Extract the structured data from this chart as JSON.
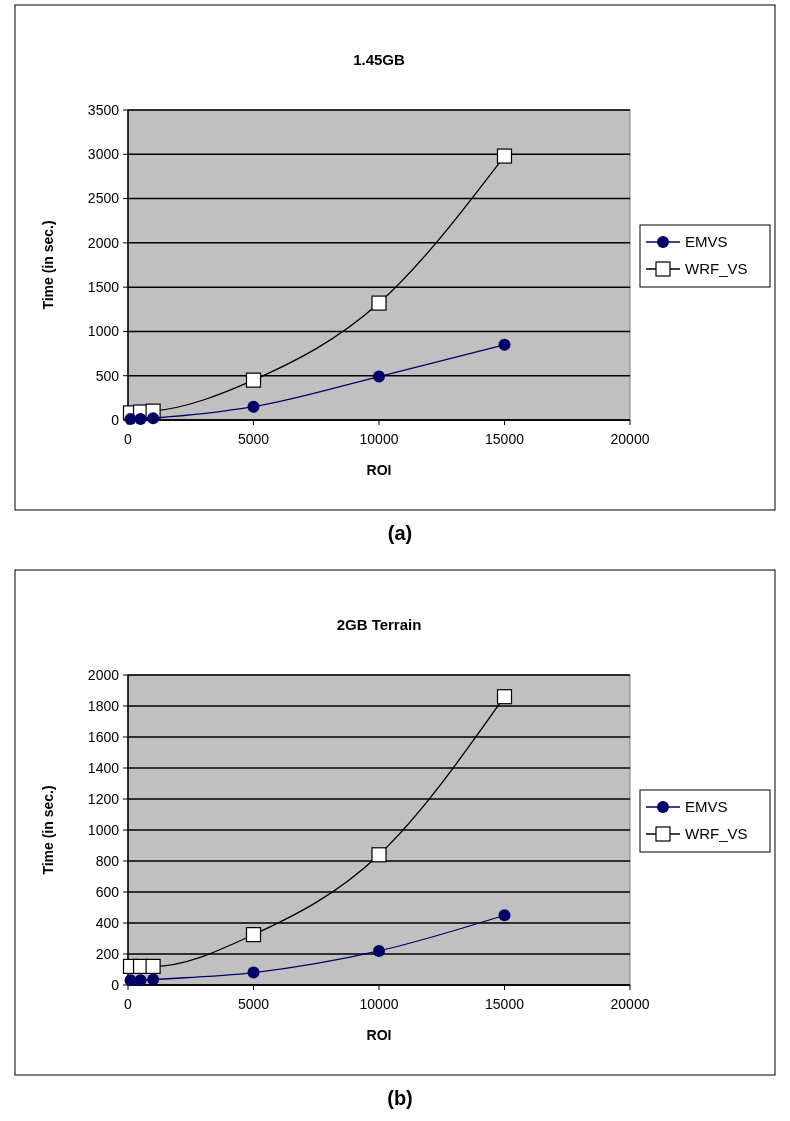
{
  "chart_data": [
    {
      "type": "line",
      "title": "1.45GB",
      "xlabel": "ROI",
      "ylabel": "Time (in sec.)",
      "x": [
        100,
        500,
        1000,
        5000,
        10000,
        15000
      ],
      "xlim": [
        0,
        20000
      ],
      "xticks": [
        0,
        5000,
        10000,
        15000,
        20000
      ],
      "ylim": [
        0,
        3500
      ],
      "yticks": [
        0,
        500,
        1000,
        1500,
        2000,
        2500,
        3000,
        3500
      ],
      "grid": "y",
      "legend": "right",
      "annotations": [
        "(a)"
      ],
      "series": [
        {
          "name": "EMVS",
          "color": "#000066",
          "values": [
            10,
            10,
            20,
            150,
            490,
            850
          ],
          "marker": "circle"
        },
        {
          "name": "WRF_VS",
          "color": "#000000",
          "values": [
            80,
            90,
            100,
            450,
            1320,
            2980
          ],
          "marker": "square"
        }
      ]
    },
    {
      "type": "line",
      "title": "2GB Terrain",
      "xlabel": "ROI",
      "ylabel": "Time (in sec.)",
      "x": [
        100,
        500,
        1000,
        5000,
        10000,
        15000
      ],
      "xlim": [
        0,
        20000
      ],
      "xticks": [
        0,
        5000,
        10000,
        15000,
        20000
      ],
      "ylim": [
        0,
        2000
      ],
      "yticks": [
        0,
        200,
        400,
        600,
        800,
        1000,
        1200,
        1400,
        1600,
        1800,
        2000
      ],
      "grid": "y",
      "legend": "right",
      "annotations": [
        "(b)"
      ],
      "series": [
        {
          "name": "EMVS",
          "color": "#000066",
          "values": [
            30,
            30,
            35,
            80,
            220,
            450
          ],
          "marker": "circle"
        },
        {
          "name": "WRF_VS",
          "color": "#000000",
          "values": [
            120,
            120,
            120,
            325,
            840,
            1860
          ],
          "marker": "square"
        }
      ]
    }
  ]
}
